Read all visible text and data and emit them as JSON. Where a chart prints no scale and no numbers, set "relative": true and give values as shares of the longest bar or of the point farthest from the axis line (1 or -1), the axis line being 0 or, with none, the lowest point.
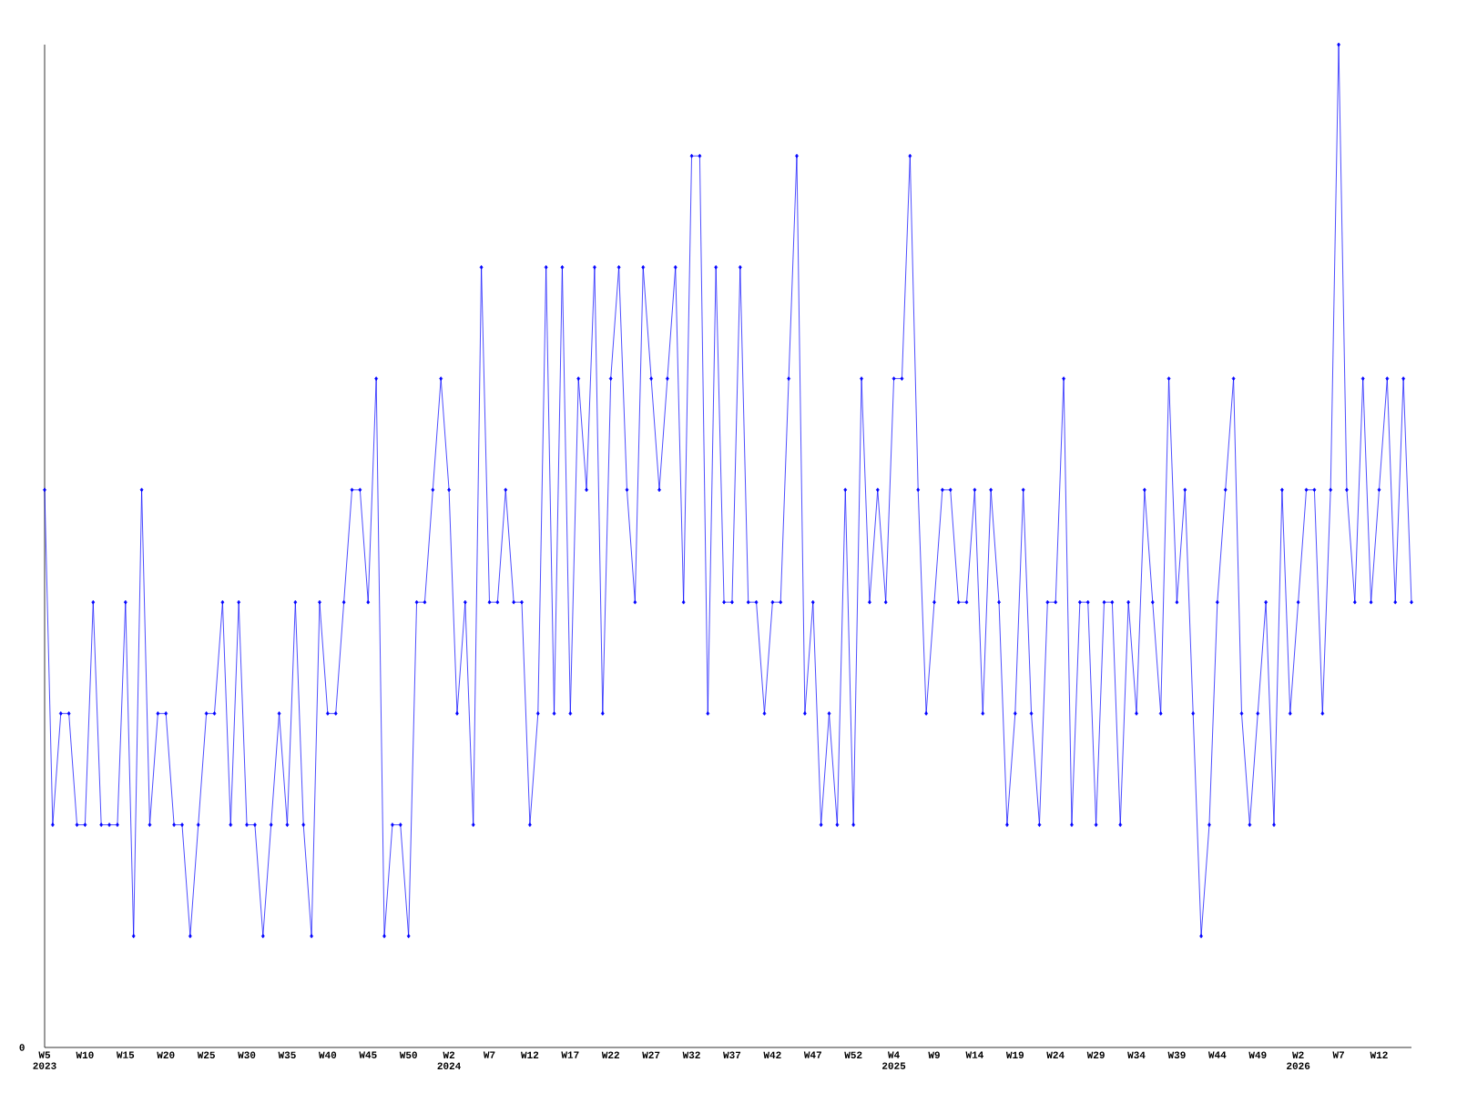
{
  "chart_data": {
    "type": "line",
    "relative": true,
    "color": "#0000ff",
    "marker": "diamond",
    "line_style": "solid",
    "categories": [
      "W5 2023",
      null,
      null,
      null,
      null,
      "W10",
      null,
      null,
      null,
      null,
      "W15",
      null,
      null,
      null,
      null,
      "W20",
      null,
      null,
      null,
      null,
      "W25",
      null,
      null,
      null,
      null,
      "W30",
      null,
      null,
      null,
      null,
      "W35",
      null,
      null,
      null,
      null,
      "W40",
      null,
      null,
      null,
      null,
      "W45",
      null,
      null,
      null,
      null,
      "W50",
      null,
      null,
      null,
      null,
      "W2 2024",
      null,
      null,
      null,
      null,
      "W7",
      null,
      null,
      null,
      null,
      "W12",
      null,
      null,
      null,
      null,
      "W17",
      null,
      null,
      null,
      null,
      "W22",
      null,
      null,
      null,
      null,
      "W27",
      null,
      null,
      null,
      null,
      "W32",
      null,
      null,
      null,
      null,
      "W37",
      null,
      null,
      null,
      null,
      "W42",
      null,
      null,
      null,
      null,
      "W47",
      null,
      null,
      null,
      null,
      "W52",
      null,
      null,
      null,
      null,
      "W4 2025",
      null,
      null,
      null,
      null,
      "W9",
      null,
      null,
      null,
      null,
      "W14",
      null,
      null,
      null,
      null,
      "W19",
      null,
      null,
      null,
      null,
      "W24",
      null,
      null,
      null,
      null,
      "W29",
      null,
      null,
      null,
      null,
      "W34",
      null,
      null,
      null,
      null,
      "W39",
      null,
      null,
      null,
      null,
      "W44",
      null,
      null,
      null,
      null,
      "W49",
      null,
      null,
      null,
      null,
      "W2 2026",
      null,
      null,
      null,
      null,
      "W7",
      null,
      null,
      null,
      null,
      "W12",
      null,
      null,
      null,
      null
    ],
    "values": [
      0.556,
      0.222,
      0.333,
      0.333,
      0.222,
      0.222,
      0.444,
      0.222,
      0.222,
      0.222,
      0.444,
      0.111,
      0.556,
      0.222,
      0.333,
      0.333,
      0.222,
      0.222,
      0.111,
      0.222,
      0.333,
      0.333,
      0.444,
      0.222,
      0.444,
      0.222,
      0.222,
      0.111,
      0.222,
      0.333,
      0.222,
      0.444,
      0.222,
      0.111,
      0.444,
      0.333,
      0.333,
      0.444,
      0.556,
      0.556,
      0.444,
      0.667,
      0.111,
      0.222,
      0.222,
      0.111,
      0.444,
      0.444,
      0.556,
      0.667,
      0.556,
      0.333,
      0.444,
      0.222,
      0.778,
      0.444,
      0.444,
      0.556,
      0.444,
      0.444,
      0.222,
      0.333,
      0.778,
      0.333,
      0.778,
      0.333,
      0.667,
      0.556,
      0.778,
      0.333,
      0.667,
      0.778,
      0.556,
      0.444,
      0.778,
      0.667,
      0.556,
      0.667,
      0.778,
      0.444,
      0.889,
      0.889,
      0.333,
      0.778,
      0.444,
      0.444,
      0.778,
      0.444,
      0.444,
      0.333,
      0.444,
      0.444,
      0.667,
      0.889,
      0.333,
      0.444,
      0.222,
      0.333,
      0.222,
      0.556,
      0.222,
      0.667,
      0.444,
      0.556,
      0.444,
      0.667,
      0.667,
      0.889,
      0.556,
      0.333,
      0.444,
      0.556,
      0.556,
      0.444,
      0.444,
      0.556,
      0.333,
      0.556,
      0.444,
      0.222,
      0.333,
      0.556,
      0.333,
      0.222,
      0.444,
      0.444,
      0.667,
      0.222,
      0.444,
      0.444,
      0.222,
      0.444,
      0.444,
      0.222,
      0.444,
      0.333,
      0.556,
      0.444,
      0.333,
      0.667,
      0.444,
      0.556,
      0.333,
      0.111,
      0.222,
      0.444,
      0.556,
      0.667,
      0.333,
      0.222,
      0.333,
      0.444,
      0.222,
      0.556,
      0.333,
      0.444,
      0.556,
      0.556,
      0.333,
      0.556,
      1,
      0.556,
      0.444,
      0.667,
      0.444,
      0.556,
      0.667,
      0.444,
      0.667,
      0.444
    ],
    "annotations": [
      "0"
    ]
  }
}
